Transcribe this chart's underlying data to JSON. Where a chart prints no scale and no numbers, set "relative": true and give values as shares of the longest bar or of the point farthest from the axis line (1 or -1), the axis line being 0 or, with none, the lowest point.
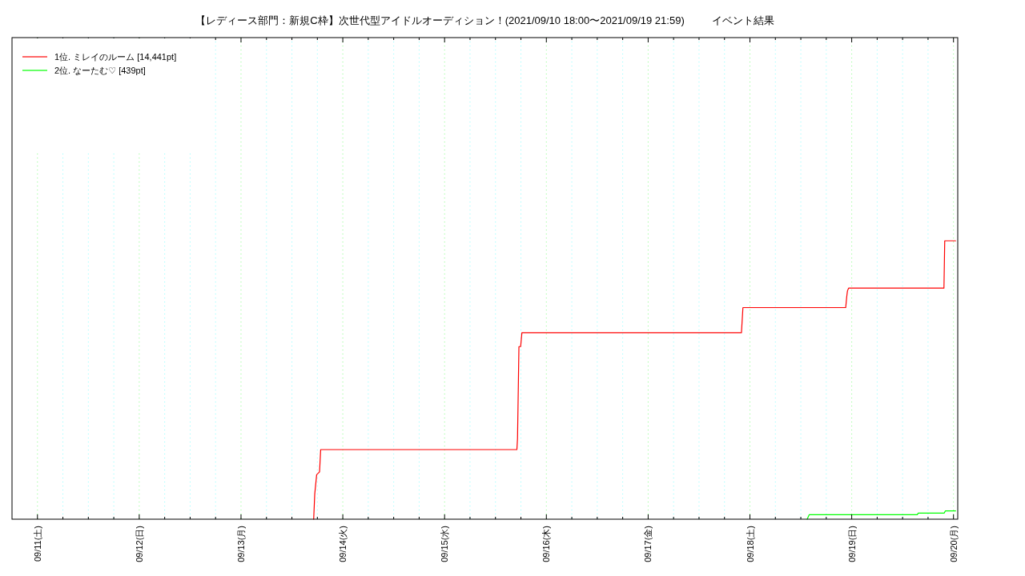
{
  "chart_data": {
    "type": "line",
    "relative": true,
    "title": "【レディース部門：新規C枠】次世代型アイドルオーディション！(2021/09/10 18:00〜2021/09/19 21:59)",
    "subtitle": "イベント結果",
    "xlim": [
      "2021-09-10T18:00",
      "2021-09-20T01:00"
    ],
    "xticks": [
      {
        "value": "2021-09-11",
        "label": "09/11(土)"
      },
      {
        "value": "2021-09-11T06:00",
        "label": null
      },
      {
        "value": "2021-09-11T12:00",
        "label": null
      },
      {
        "value": "2021-09-11T18:00",
        "label": null
      },
      {
        "value": "2021-09-12",
        "label": "09/12(日)"
      },
      {
        "value": "2021-09-12T06:00",
        "label": null
      },
      {
        "value": "2021-09-12T12:00",
        "label": null
      },
      {
        "value": "2021-09-12T18:00",
        "label": null
      },
      {
        "value": "2021-09-13",
        "label": "09/13(月)"
      },
      {
        "value": "2021-09-13T06:00",
        "label": null
      },
      {
        "value": "2021-09-13T12:00",
        "label": null
      },
      {
        "value": "2021-09-13T18:00",
        "label": null
      },
      {
        "value": "2021-09-14",
        "label": "09/14(火)"
      },
      {
        "value": "2021-09-14T06:00",
        "label": null
      },
      {
        "value": "2021-09-14T12:00",
        "label": null
      },
      {
        "value": "2021-09-14T18:00",
        "label": null
      },
      {
        "value": "2021-09-15",
        "label": "09/15(水)"
      },
      {
        "value": "2021-09-15T06:00",
        "label": null
      },
      {
        "value": "2021-09-15T12:00",
        "label": null
      },
      {
        "value": "2021-09-15T18:00",
        "label": null
      },
      {
        "value": "2021-09-16",
        "label": "09/16(木)"
      },
      {
        "value": "2021-09-16T06:00",
        "label": null
      },
      {
        "value": "2021-09-16T12:00",
        "label": null
      },
      {
        "value": "2021-09-16T18:00",
        "label": null
      },
      {
        "value": "2021-09-17",
        "label": "09/17(金)"
      },
      {
        "value": "2021-09-17T06:00",
        "label": null
      },
      {
        "value": "2021-09-17T12:00",
        "label": null
      },
      {
        "value": "2021-09-17T18:00",
        "label": null
      },
      {
        "value": "2021-09-18",
        "label": "09/18(土)"
      },
      {
        "value": "2021-09-18T06:00",
        "label": null
      },
      {
        "value": "2021-09-18T12:00",
        "label": null
      },
      {
        "value": "2021-09-18T18:00",
        "label": null
      },
      {
        "value": "2021-09-19",
        "label": "09/19(日)"
      },
      {
        "value": "2021-09-19T06:00",
        "label": null
      },
      {
        "value": "2021-09-19T12:00",
        "label": null
      },
      {
        "value": "2021-09-19T18:00",
        "label": null
      },
      {
        "value": "2021-09-20",
        "label": "09/20(月)"
      }
    ],
    "grid": "x",
    "legend": "top left",
    "series": [
      {
        "name": "1位. ミレイのルーム [14,441pt]",
        "color": "#ff0000",
        "x": [
          "2021-09-13T17:08",
          "2021-09-13T17:23",
          "2021-09-13T17:50",
          "2021-09-13T18:31",
          "2021-09-13T18:47",
          "2021-09-15T17:03",
          "2021-09-15T17:12",
          "2021-09-15T17:32",
          "2021-09-15T17:56",
          "2021-09-15T18:14",
          "2021-09-17T22:00",
          "2021-09-17T22:21",
          "2021-09-18T22:35",
          "2021-09-18T22:50",
          "2021-09-18T23:00",
          "2021-09-18T23:16",
          "2021-09-19T21:45",
          "2021-09-19T21:56",
          "2021-09-20T00:30"
        ],
        "values": [
          0,
          0.09,
          0.16,
          0.17,
          0.25,
          0.25,
          0.29,
          0.62,
          0.62,
          0.67,
          0.67,
          0.76,
          0.76,
          0.8,
          0.82,
          0.83,
          0.83,
          1,
          1
        ]
      },
      {
        "name": "2位. なーたむ♡ [439pt]",
        "color": "#00ff00",
        "x": [
          "2021-09-18T13:30",
          "2021-09-18T13:58",
          "2021-09-19T15:27",
          "2021-09-19T15:42",
          "2021-09-19T21:48",
          "2021-09-19T22:06",
          "2021-09-20T00:30"
        ],
        "values": [
          0,
          0.016,
          0.016,
          0.022,
          0.022,
          0.03,
          0.03
        ]
      }
    ]
  }
}
